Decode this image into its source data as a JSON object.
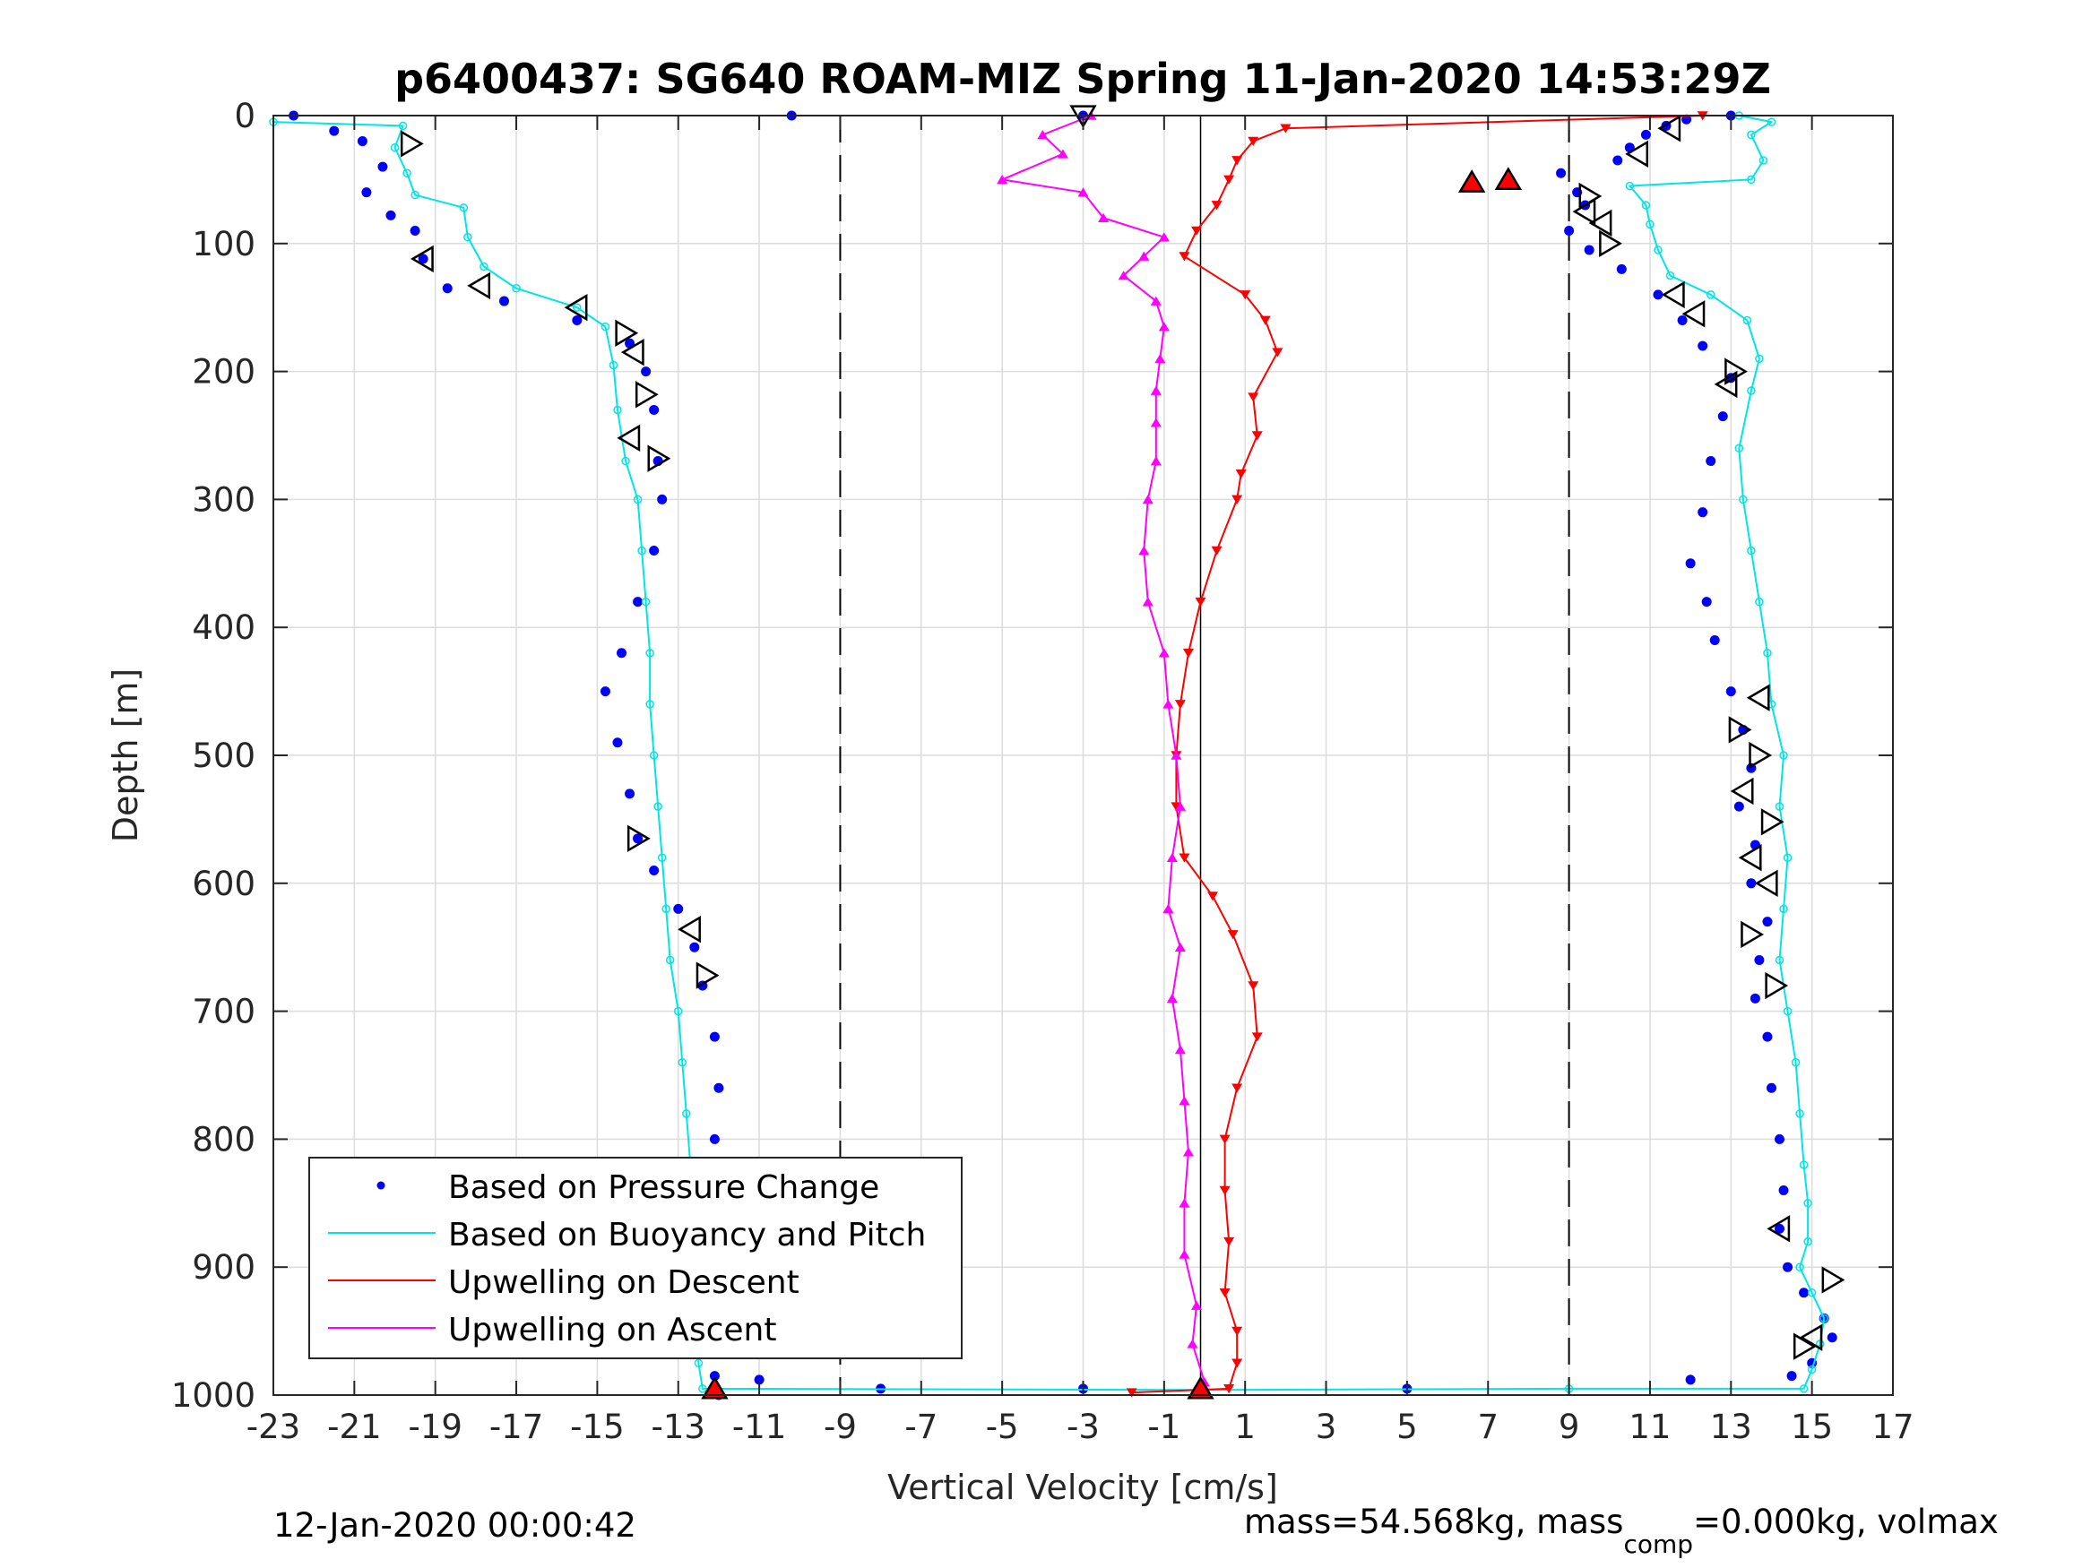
{
  "chart_data": {
    "type": "scatter",
    "title": "p6400437: SG640 ROAM-MIZ Spring 11-Jan-2020 14:53:29Z",
    "xlabel": "Vertical Velocity [cm/s]",
    "ylabel": "Depth [m]",
    "xlim": [
      -23,
      17
    ],
    "ylim": [
      0,
      1000
    ],
    "y_reversed": true,
    "grid": true,
    "legend_position": "bottom-left",
    "xticks": [
      "-23",
      "-21",
      "-19",
      "-17",
      "-15",
      "-13",
      "-11",
      "-9",
      "-7",
      "-5",
      "-3",
      "-1",
      "1",
      "3",
      "5",
      "7",
      "9",
      "11",
      "13",
      "15",
      "17"
    ],
    "yticks": [
      "0",
      "100",
      "200",
      "300",
      "400",
      "500",
      "600",
      "700",
      "800",
      "900",
      "1000"
    ],
    "dashed_lines_x": [
      -9,
      9
    ],
    "solid_line_x": [
      -0.1
    ],
    "legend": [
      {
        "name": "Based on Pressure Change",
        "color": "#0000ff",
        "marker": "dot"
      },
      {
        "name": "Based on Buoyancy and Pitch",
        "color": "#00e5e5",
        "marker": "line"
      },
      {
        "name": "Upwelling on Descent",
        "color": "#ff0000",
        "marker": "line"
      },
      {
        "name": "Upwelling on Ascent",
        "color": "#ff00ff",
        "marker": "line"
      }
    ],
    "series": [
      {
        "name": "Based on Pressure Change",
        "color": "#0000ff",
        "style": "dots",
        "points": [
          [
            -22.5,
            0
          ],
          [
            -21.5,
            12
          ],
          [
            -20.8,
            20
          ],
          [
            -20.3,
            40
          ],
          [
            -20.7,
            60
          ],
          [
            -20.1,
            78
          ],
          [
            -19.5,
            90
          ],
          [
            -19.3,
            112
          ],
          [
            -18.7,
            135
          ],
          [
            -17.3,
            145
          ],
          [
            -15.5,
            160
          ],
          [
            -14.2,
            178
          ],
          [
            -13.8,
            200
          ],
          [
            -13.6,
            230
          ],
          [
            -13.5,
            270
          ],
          [
            -13.4,
            300
          ],
          [
            -13.6,
            340
          ],
          [
            -14.0,
            380
          ],
          [
            -14.4,
            420
          ],
          [
            -14.8,
            450
          ],
          [
            -14.5,
            490
          ],
          [
            -14.2,
            530
          ],
          [
            -14.0,
            565
          ],
          [
            -13.6,
            590
          ],
          [
            -13.0,
            620
          ],
          [
            -12.6,
            650
          ],
          [
            -12.4,
            680
          ],
          [
            -12.1,
            720
          ],
          [
            -12.0,
            760
          ],
          [
            -12.1,
            800
          ],
          [
            -12.4,
            840
          ],
          [
            -12.5,
            880
          ],
          [
            -12.5,
            920
          ],
          [
            -12.4,
            960
          ],
          [
            -12.1,
            985
          ],
          [
            -12.0,
            1000
          ],
          [
            -11.0,
            988
          ],
          [
            -8.0,
            995
          ],
          [
            -3.0,
            995
          ],
          [
            5.0,
            995
          ],
          [
            12.0,
            988
          ],
          [
            14.5,
            985
          ],
          [
            15.0,
            975
          ],
          [
            15.5,
            955
          ],
          [
            15.3,
            940
          ],
          [
            14.8,
            920
          ],
          [
            14.4,
            900
          ],
          [
            14.2,
            870
          ],
          [
            14.3,
            840
          ],
          [
            14.2,
            800
          ],
          [
            14.0,
            760
          ],
          [
            13.9,
            720
          ],
          [
            13.6,
            690
          ],
          [
            13.7,
            660
          ],
          [
            13.9,
            630
          ],
          [
            13.5,
            600
          ],
          [
            13.6,
            570
          ],
          [
            13.2,
            540
          ],
          [
            13.5,
            510
          ],
          [
            13.3,
            480
          ],
          [
            13.0,
            450
          ],
          [
            12.6,
            410
          ],
          [
            12.4,
            380
          ],
          [
            12.0,
            350
          ],
          [
            12.3,
            310
          ],
          [
            12.5,
            270
          ],
          [
            12.8,
            235
          ],
          [
            13.0,
            205
          ],
          [
            12.3,
            180
          ],
          [
            11.8,
            160
          ],
          [
            11.2,
            140
          ],
          [
            10.3,
            120
          ],
          [
            9.5,
            105
          ],
          [
            9.0,
            90
          ],
          [
            9.4,
            70
          ],
          [
            9.2,
            60
          ],
          [
            8.8,
            45
          ],
          [
            10.2,
            35
          ],
          [
            10.5,
            25
          ],
          [
            10.9,
            15
          ],
          [
            11.4,
            8
          ],
          [
            11.9,
            3
          ],
          [
            13.0,
            0
          ],
          [
            -3.0,
            0
          ],
          [
            -10.2,
            0
          ]
        ]
      },
      {
        "name": "Based on Buoyancy and Pitch",
        "color": "#00e5e5",
        "style": "line",
        "points": [
          [
            -23,
            5
          ],
          [
            -19.8,
            8
          ],
          [
            -20.0,
            25
          ],
          [
            -19.7,
            45
          ],
          [
            -19.5,
            62
          ],
          [
            -18.3,
            72
          ],
          [
            -18.2,
            95
          ],
          [
            -17.8,
            118
          ],
          [
            -17.0,
            135
          ],
          [
            -15.5,
            150
          ],
          [
            -14.8,
            165
          ],
          [
            -14.6,
            195
          ],
          [
            -14.5,
            230
          ],
          [
            -14.3,
            270
          ],
          [
            -14.0,
            300
          ],
          [
            -13.9,
            340
          ],
          [
            -13.8,
            380
          ],
          [
            -13.7,
            420
          ],
          [
            -13.7,
            460
          ],
          [
            -13.6,
            500
          ],
          [
            -13.5,
            540
          ],
          [
            -13.4,
            580
          ],
          [
            -13.3,
            620
          ],
          [
            -13.2,
            660
          ],
          [
            -13.0,
            700
          ],
          [
            -12.9,
            740
          ],
          [
            -12.8,
            780
          ],
          [
            -12.7,
            820
          ],
          [
            -12.6,
            860
          ],
          [
            -12.6,
            900
          ],
          [
            -12.5,
            940
          ],
          [
            -12.5,
            975
          ],
          [
            -12.4,
            995
          ],
          [
            0,
            996
          ],
          [
            9,
            995
          ],
          [
            14.8,
            995
          ],
          [
            15.0,
            980
          ],
          [
            15.2,
            960
          ],
          [
            15.3,
            940
          ],
          [
            15.0,
            920
          ],
          [
            14.7,
            900
          ],
          [
            14.9,
            880
          ],
          [
            14.9,
            850
          ],
          [
            14.8,
            820
          ],
          [
            14.7,
            780
          ],
          [
            14.6,
            740
          ],
          [
            14.4,
            700
          ],
          [
            14.2,
            660
          ],
          [
            14.3,
            620
          ],
          [
            14.4,
            580
          ],
          [
            14.2,
            540
          ],
          [
            14.3,
            500
          ],
          [
            14.0,
            460
          ],
          [
            13.9,
            420
          ],
          [
            13.7,
            380
          ],
          [
            13.5,
            340
          ],
          [
            13.3,
            300
          ],
          [
            13.2,
            260
          ],
          [
            13.5,
            215
          ],
          [
            13.7,
            190
          ],
          [
            13.4,
            160
          ],
          [
            12.5,
            140
          ],
          [
            11.5,
            125
          ],
          [
            11.2,
            105
          ],
          [
            11.0,
            85
          ],
          [
            10.9,
            70
          ],
          [
            10.5,
            55
          ],
          [
            13.5,
            50
          ],
          [
            13.8,
            35
          ],
          [
            13.5,
            15
          ],
          [
            14.0,
            5
          ],
          [
            13.2,
            0
          ]
        ]
      },
      {
        "name": "Upwelling on Descent",
        "color": "#ff0000",
        "style": "triangle-down",
        "points": [
          [
            12.3,
            0
          ],
          [
            2.0,
            10
          ],
          [
            1.2,
            20
          ],
          [
            0.8,
            35
          ],
          [
            0.6,
            50
          ],
          [
            0.3,
            70
          ],
          [
            -0.2,
            90
          ],
          [
            -0.5,
            110
          ],
          [
            1.0,
            140
          ],
          [
            1.5,
            160
          ],
          [
            1.8,
            185
          ],
          [
            1.2,
            220
          ],
          [
            1.3,
            250
          ],
          [
            0.9,
            280
          ],
          [
            0.8,
            300
          ],
          [
            0.3,
            340
          ],
          [
            -0.1,
            380
          ],
          [
            -0.4,
            420
          ],
          [
            -0.6,
            460
          ],
          [
            -0.7,
            500
          ],
          [
            -0.7,
            540
          ],
          [
            -0.5,
            580
          ],
          [
            0.2,
            610
          ],
          [
            0.7,
            640
          ],
          [
            1.2,
            680
          ],
          [
            1.3,
            720
          ],
          [
            0.8,
            760
          ],
          [
            0.5,
            800
          ],
          [
            0.5,
            840
          ],
          [
            0.6,
            880
          ],
          [
            0.5,
            920
          ],
          [
            0.8,
            950
          ],
          [
            0.8,
            975
          ],
          [
            0.6,
            995
          ],
          [
            -1.8,
            998
          ]
        ]
      },
      {
        "name": "Upwelling on Ascent",
        "color": "#ff00ff",
        "style": "triangle-up",
        "points": [
          [
            -2.8,
            0
          ],
          [
            -4.0,
            15
          ],
          [
            -3.5,
            30
          ],
          [
            -5.0,
            50
          ],
          [
            -3.0,
            60
          ],
          [
            -2.5,
            80
          ],
          [
            -1.0,
            95
          ],
          [
            -1.5,
            110
          ],
          [
            -2.0,
            125
          ],
          [
            -1.2,
            145
          ],
          [
            -1.0,
            165
          ],
          [
            -1.1,
            190
          ],
          [
            -1.2,
            215
          ],
          [
            -1.2,
            240
          ],
          [
            -1.2,
            270
          ],
          [
            -1.4,
            300
          ],
          [
            -1.5,
            340
          ],
          [
            -1.4,
            380
          ],
          [
            -1.0,
            420
          ],
          [
            -0.9,
            460
          ],
          [
            -0.7,
            500
          ],
          [
            -0.6,
            540
          ],
          [
            -0.8,
            580
          ],
          [
            -0.9,
            620
          ],
          [
            -0.6,
            650
          ],
          [
            -0.8,
            690
          ],
          [
            -0.6,
            730
          ],
          [
            -0.5,
            770
          ],
          [
            -0.4,
            810
          ],
          [
            -0.5,
            850
          ],
          [
            -0.5,
            890
          ],
          [
            -0.2,
            930
          ],
          [
            -0.3,
            960
          ],
          [
            0.0,
            990
          ]
        ]
      }
    ],
    "markers": {
      "open_right": [
        [
          -19.6,
          22
        ],
        [
          -14.3,
          170
        ],
        [
          -13.8,
          218
        ],
        [
          -13.5,
          268
        ],
        [
          -14.0,
          565
        ],
        [
          -12.3,
          672
        ],
        [
          -12.4,
          930
        ],
        [
          9.5,
          63
        ],
        [
          10.0,
          100
        ],
        [
          13.1,
          200
        ],
        [
          13.2,
          480
        ],
        [
          13.7,
          500
        ],
        [
          14.0,
          552
        ],
        [
          13.5,
          640
        ],
        [
          14.1,
          680
        ],
        [
          15.5,
          910
        ],
        [
          14.8,
          962
        ]
      ],
      "open_left": [
        [
          -19.3,
          112
        ],
        [
          -17.9,
          133
        ],
        [
          -15.5,
          150
        ],
        [
          -14.1,
          185
        ],
        [
          -14.2,
          252
        ],
        [
          -12.7,
          636
        ],
        [
          11.5,
          10
        ],
        [
          10.7,
          30
        ],
        [
          9.4,
          75
        ],
        [
          9.8,
          84
        ],
        [
          11.6,
          140
        ],
        [
          12.1,
          155
        ],
        [
          12.9,
          210
        ],
        [
          13.7,
          455
        ],
        [
          13.3,
          528
        ],
        [
          13.5,
          580
        ],
        [
          13.9,
          600
        ],
        [
          14.2,
          870
        ],
        [
          15.0,
          955
        ]
      ],
      "open_down": [
        [
          -3.0,
          0
        ]
      ],
      "red_up": [
        [
          6.6,
          52
        ],
        [
          7.5,
          50
        ],
        [
          -12.1,
          995
        ],
        [
          -0.1,
          995
        ]
      ]
    }
  },
  "footer": {
    "timestamp": "12-Jan-2020 00:00:42",
    "mass_text": "mass=54.568kg, mass",
    "mass_sub": "comp",
    "mass_rest": "=0.000kg, volmax"
  }
}
